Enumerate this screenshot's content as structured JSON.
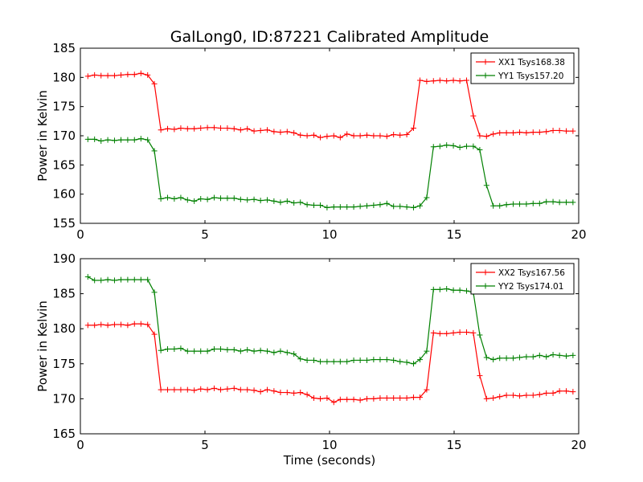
{
  "figure": {
    "title": "GalLong0, ID:87221 Calibrated Amplitude",
    "xlabel": "Time (seconds)"
  },
  "chart_data": [
    {
      "type": "line",
      "ylabel": "Power in Kelvin",
      "xlim": [
        0,
        20
      ],
      "ylim": [
        155,
        185
      ],
      "xticks": [
        0,
        5,
        10,
        15,
        20
      ],
      "yticks": [
        155,
        160,
        165,
        170,
        175,
        180,
        185
      ],
      "grid": false,
      "legend_position": "top-right",
      "x": [
        0.3,
        0.57,
        0.83,
        1.1,
        1.37,
        1.63,
        1.9,
        2.17,
        2.43,
        2.7,
        2.97,
        3.23,
        3.5,
        3.77,
        4.03,
        4.3,
        4.57,
        4.83,
        5.1,
        5.37,
        5.63,
        5.9,
        6.17,
        6.43,
        6.7,
        6.97,
        7.23,
        7.5,
        7.77,
        8.03,
        8.3,
        8.57,
        8.83,
        9.1,
        9.37,
        9.63,
        9.9,
        10.17,
        10.43,
        10.7,
        10.97,
        11.23,
        11.5,
        11.77,
        12.03,
        12.3,
        12.57,
        12.83,
        13.1,
        13.37,
        13.63,
        13.9,
        14.17,
        14.43,
        14.7,
        14.97,
        15.23,
        15.5,
        15.77,
        16.03,
        16.3,
        16.57,
        16.83,
        17.1,
        17.37,
        17.63,
        17.9,
        18.17,
        18.43,
        18.7,
        18.97,
        19.23,
        19.5,
        19.77
      ],
      "series": [
        {
          "name": "XX1 Tsys168.38",
          "color": "#ff0000",
          "values": [
            180.2,
            180.4,
            180.3,
            180.3,
            180.3,
            180.4,
            180.5,
            180.5,
            180.7,
            180.4,
            178.9,
            171.0,
            171.2,
            171.1,
            171.3,
            171.2,
            171.2,
            171.3,
            171.4,
            171.4,
            171.3,
            171.3,
            171.2,
            171.0,
            171.2,
            170.8,
            170.9,
            171.0,
            170.7,
            170.6,
            170.7,
            170.5,
            170.1,
            170.0,
            170.1,
            169.7,
            169.9,
            170.0,
            169.7,
            170.3,
            170.0,
            170.0,
            170.1,
            170.0,
            170.0,
            169.9,
            170.2,
            170.1,
            170.2,
            171.3,
            179.5,
            179.3,
            179.4,
            179.5,
            179.4,
            179.5,
            179.4,
            179.5,
            173.4,
            170.0,
            169.9,
            170.3,
            170.5,
            170.5,
            170.5,
            170.6,
            170.5,
            170.6,
            170.6,
            170.7,
            170.9,
            170.9,
            170.8,
            170.8
          ]
        },
        {
          "name": "YY1 Tsys157.20",
          "color": "#008000",
          "values": [
            169.4,
            169.4,
            169.1,
            169.3,
            169.2,
            169.3,
            169.3,
            169.3,
            169.5,
            169.3,
            167.4,
            159.2,
            159.4,
            159.2,
            159.4,
            159.0,
            158.8,
            159.2,
            159.1,
            159.4,
            159.3,
            159.3,
            159.3,
            159.1,
            159.0,
            159.1,
            158.9,
            159.0,
            158.8,
            158.6,
            158.8,
            158.5,
            158.6,
            158.2,
            158.1,
            158.1,
            157.7,
            157.8,
            157.8,
            157.8,
            157.8,
            157.9,
            158.0,
            158.1,
            158.2,
            158.4,
            157.9,
            157.9,
            157.8,
            157.7,
            158.0,
            159.4,
            168.1,
            168.2,
            168.4,
            168.3,
            168.0,
            168.2,
            168.2,
            167.6,
            161.5,
            158.0,
            158.0,
            158.2,
            158.3,
            158.3,
            158.3,
            158.4,
            158.4,
            158.7,
            158.7,
            158.6,
            158.6,
            158.6
          ]
        }
      ]
    },
    {
      "type": "line",
      "ylabel": "Power in Kelvin",
      "xlim": [
        0,
        20
      ],
      "ylim": [
        165,
        190
      ],
      "xticks": [
        0,
        5,
        10,
        15,
        20
      ],
      "yticks": [
        165,
        170,
        175,
        180,
        185,
        190
      ],
      "grid": false,
      "legend_position": "top-right",
      "x": [
        0.3,
        0.57,
        0.83,
        1.1,
        1.37,
        1.63,
        1.9,
        2.17,
        2.43,
        2.7,
        2.97,
        3.23,
        3.5,
        3.77,
        4.03,
        4.3,
        4.57,
        4.83,
        5.1,
        5.37,
        5.63,
        5.9,
        6.17,
        6.43,
        6.7,
        6.97,
        7.23,
        7.5,
        7.77,
        8.03,
        8.3,
        8.57,
        8.83,
        9.1,
        9.37,
        9.63,
        9.9,
        10.17,
        10.43,
        10.7,
        10.97,
        11.23,
        11.5,
        11.77,
        12.03,
        12.3,
        12.57,
        12.83,
        13.1,
        13.37,
        13.63,
        13.9,
        14.17,
        14.43,
        14.7,
        14.97,
        15.23,
        15.5,
        15.77,
        16.03,
        16.3,
        16.57,
        16.83,
        17.1,
        17.37,
        17.63,
        17.9,
        18.17,
        18.43,
        18.7,
        18.97,
        19.23,
        19.5,
        19.77
      ],
      "series": [
        {
          "name": "XX2 Tsys167.56",
          "color": "#ff0000",
          "values": [
            180.5,
            180.5,
            180.6,
            180.5,
            180.6,
            180.6,
            180.5,
            180.7,
            180.7,
            180.6,
            179.2,
            171.3,
            171.3,
            171.3,
            171.3,
            171.3,
            171.2,
            171.4,
            171.3,
            171.5,
            171.3,
            171.4,
            171.5,
            171.3,
            171.3,
            171.2,
            171.0,
            171.3,
            171.1,
            170.9,
            170.9,
            170.8,
            170.9,
            170.6,
            170.1,
            170.0,
            170.1,
            169.5,
            169.9,
            169.9,
            169.9,
            169.8,
            170.0,
            170.0,
            170.1,
            170.1,
            170.1,
            170.1,
            170.1,
            170.2,
            170.2,
            171.3,
            179.4,
            179.3,
            179.3,
            179.4,
            179.5,
            179.5,
            179.4,
            173.3,
            170.0,
            170.1,
            170.3,
            170.5,
            170.5,
            170.4,
            170.5,
            170.5,
            170.6,
            170.8,
            170.8,
            171.1,
            171.1,
            171.0
          ]
        },
        {
          "name": "YY2 Tsys174.01",
          "color": "#008000",
          "values": [
            187.4,
            186.9,
            186.9,
            187.0,
            186.9,
            187.0,
            187.0,
            187.0,
            187.0,
            187.0,
            185.2,
            176.9,
            177.1,
            177.1,
            177.2,
            176.8,
            176.8,
            176.8,
            176.8,
            177.1,
            177.1,
            177.0,
            177.0,
            176.8,
            177.0,
            176.8,
            176.9,
            176.8,
            176.6,
            176.8,
            176.6,
            176.4,
            175.7,
            175.5,
            175.5,
            175.3,
            175.3,
            175.3,
            175.3,
            175.3,
            175.5,
            175.5,
            175.5,
            175.6,
            175.6,
            175.6,
            175.5,
            175.3,
            175.2,
            175.0,
            175.6,
            176.8,
            185.6,
            185.6,
            185.7,
            185.5,
            185.5,
            185.4,
            185.2,
            179.1,
            175.9,
            175.6,
            175.8,
            175.8,
            175.8,
            175.9,
            176.0,
            176.0,
            176.2,
            176.0,
            176.3,
            176.2,
            176.1,
            176.2
          ]
        }
      ]
    }
  ]
}
